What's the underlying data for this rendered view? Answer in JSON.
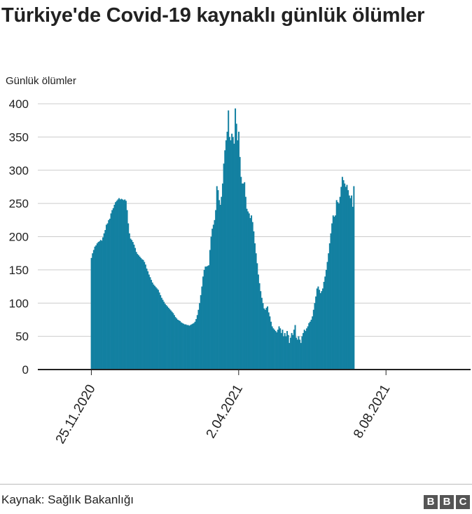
{
  "chart_data": {
    "type": "bar",
    "title": "Türkiye'de Covid-19 kaynaklı günlük ölümler",
    "ylabel": "Günlük ölümler",
    "xlabel": "",
    "x_ticks": [
      "25.11.2020",
      "2.04.2021",
      "8.08.2021"
    ],
    "y_ticks": [
      0,
      50,
      100,
      150,
      200,
      250,
      300,
      350,
      400
    ],
    "ylim": [
      0,
      400
    ],
    "x_range": [
      "2020-10-10",
      "2021-10-21"
    ],
    "grid": true,
    "color": "#1380A1",
    "x_start": "2020-11-25",
    "values": [
      168,
      175,
      180,
      185,
      187,
      190,
      192,
      193,
      195,
      194,
      199,
      205,
      210,
      218,
      220,
      225,
      227,
      235,
      240,
      243,
      248,
      252,
      254,
      256,
      258,
      256,
      257,
      256,
      255,
      256,
      254,
      240,
      220,
      205,
      197,
      195,
      192,
      188,
      183,
      177,
      174,
      172,
      170,
      168,
      166,
      165,
      162,
      158,
      152,
      148,
      143,
      139,
      135,
      131,
      128,
      126,
      124,
      122,
      120,
      116,
      112,
      108,
      105,
      102,
      99,
      97,
      95,
      93,
      91,
      89,
      87,
      85,
      82,
      79,
      77,
      75,
      74,
      73,
      71,
      70,
      69,
      68,
      68,
      67,
      67,
      66,
      67,
      68,
      69,
      70,
      72,
      76,
      82,
      90,
      100,
      112,
      125,
      140,
      150,
      155,
      155,
      156,
      157,
      180,
      200,
      212,
      218,
      225,
      240,
      276,
      270,
      255,
      248,
      260,
      280,
      310,
      330,
      345,
      358,
      390,
      350,
      345,
      355,
      350,
      340,
      393,
      370,
      345,
      358,
      320,
      290,
      280,
      280,
      282,
      260,
      242,
      238,
      235,
      228,
      232,
      222,
      208,
      190,
      175,
      160,
      143,
      130,
      118,
      108,
      100,
      92,
      90,
      93,
      95,
      86,
      80,
      72,
      65,
      62,
      60,
      58,
      56,
      60,
      65,
      62,
      55,
      60,
      50,
      55,
      50,
      58,
      52,
      40,
      48,
      55,
      52,
      60,
      67,
      48,
      45,
      50,
      45,
      40,
      50,
      55,
      60,
      58,
      62,
      65,
      70,
      72,
      75,
      80,
      90,
      100,
      110,
      122,
      125,
      120,
      115,
      118,
      122,
      132,
      140,
      150,
      162,
      175,
      190,
      205,
      220,
      232,
      230,
      232,
      255,
      252,
      250,
      260,
      275,
      290,
      285,
      280,
      275,
      278,
      270,
      262,
      258,
      262,
      245,
      276
    ]
  },
  "source": "Kaynak: Sağlık Bakanlığı",
  "logo": [
    "B",
    "B",
    "C"
  ]
}
